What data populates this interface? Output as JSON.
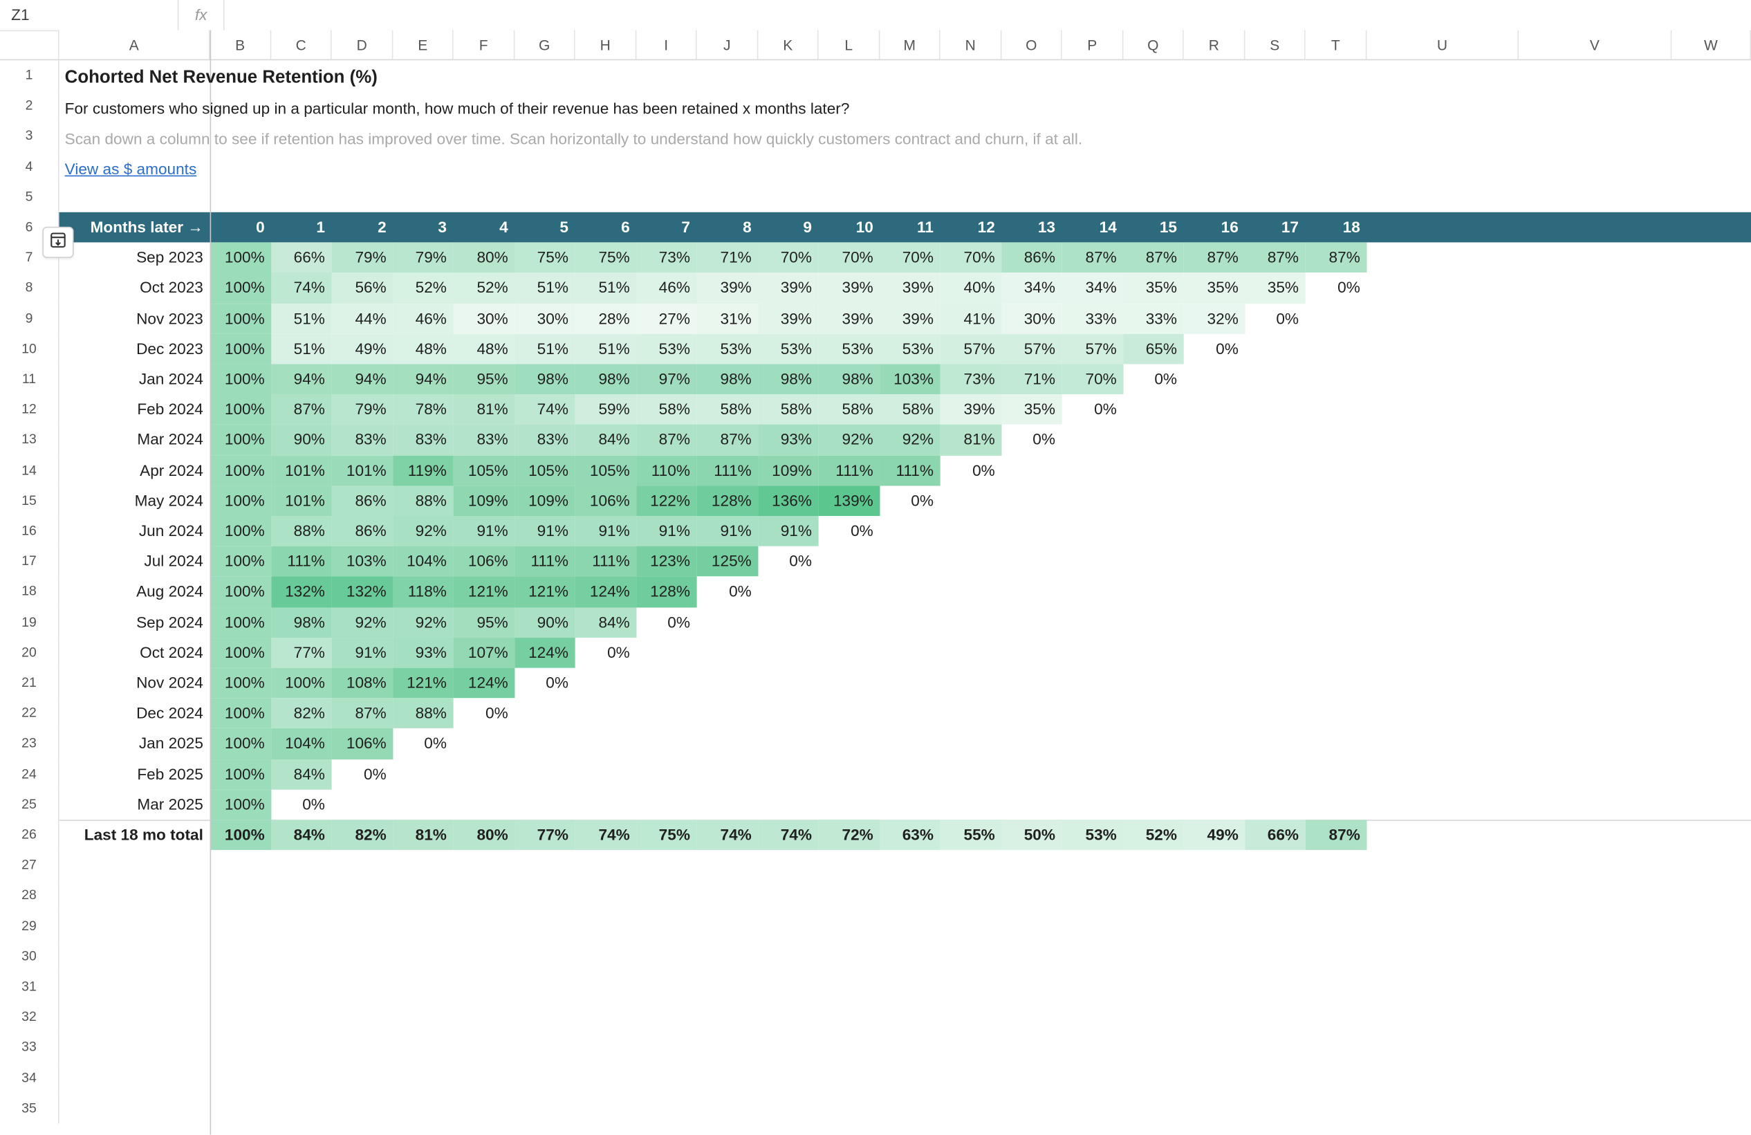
{
  "formula_bar": {
    "cell_ref": "Z1",
    "fx_label": "fx",
    "formula": ""
  },
  "columns": [
    "A",
    "B",
    "C",
    "D",
    "E",
    "F",
    "G",
    "H",
    "I",
    "J",
    "K",
    "L",
    "M",
    "N",
    "O",
    "P",
    "Q",
    "R",
    "S",
    "T",
    "U",
    "V",
    "W"
  ],
  "row_numbers": [
    "1",
    "2",
    "3",
    "4",
    "5",
    "6",
    "7",
    "8",
    "9",
    "10",
    "11",
    "12",
    "13",
    "14",
    "15",
    "16",
    "17",
    "18",
    "19",
    "20",
    "21",
    "22",
    "23",
    "24",
    "25",
    "26",
    "27",
    "28",
    "29",
    "30",
    "31",
    "32",
    "33",
    "34",
    "35"
  ],
  "sheet": {
    "title": "Cohorted Net Revenue Retention (%)",
    "subtitle": "For customers who signed up in a particular month, how much of their revenue has been retained x months later?",
    "hint": "Scan down a column to see if retention has improved over time. Scan horizontally to understand how quickly customers contract and churn, if at all.",
    "link": "View as $ amounts",
    "header_label": "Months later →",
    "month_offsets": [
      "0",
      "1",
      "2",
      "3",
      "4",
      "5",
      "6",
      "7",
      "8",
      "9",
      "10",
      "11",
      "12",
      "13",
      "14",
      "15",
      "16",
      "17",
      "18"
    ],
    "cohorts": [
      {
        "label": "Sep 2023",
        "values": [
          "100%",
          "66%",
          "79%",
          "79%",
          "80%",
          "75%",
          "75%",
          "73%",
          "71%",
          "70%",
          "70%",
          "70%",
          "70%",
          "86%",
          "87%",
          "87%",
          "87%",
          "87%",
          "87%"
        ]
      },
      {
        "label": "Oct 2023",
        "values": [
          "100%",
          "74%",
          "56%",
          "52%",
          "52%",
          "51%",
          "51%",
          "46%",
          "39%",
          "39%",
          "39%",
          "39%",
          "40%",
          "34%",
          "34%",
          "35%",
          "35%",
          "35%",
          "0%"
        ]
      },
      {
        "label": "Nov 2023",
        "values": [
          "100%",
          "51%",
          "44%",
          "46%",
          "30%",
          "30%",
          "28%",
          "27%",
          "31%",
          "39%",
          "39%",
          "39%",
          "41%",
          "30%",
          "33%",
          "33%",
          "32%",
          "0%"
        ]
      },
      {
        "label": "Dec 2023",
        "values": [
          "100%",
          "51%",
          "49%",
          "48%",
          "48%",
          "51%",
          "51%",
          "53%",
          "53%",
          "53%",
          "53%",
          "53%",
          "57%",
          "57%",
          "57%",
          "65%",
          "0%"
        ]
      },
      {
        "label": "Jan 2024",
        "values": [
          "100%",
          "94%",
          "94%",
          "94%",
          "95%",
          "98%",
          "98%",
          "97%",
          "98%",
          "98%",
          "98%",
          "103%",
          "73%",
          "71%",
          "70%",
          "0%"
        ]
      },
      {
        "label": "Feb 2024",
        "values": [
          "100%",
          "87%",
          "79%",
          "78%",
          "81%",
          "74%",
          "59%",
          "58%",
          "58%",
          "58%",
          "58%",
          "58%",
          "39%",
          "35%",
          "0%"
        ]
      },
      {
        "label": "Mar 2024",
        "values": [
          "100%",
          "90%",
          "83%",
          "83%",
          "83%",
          "83%",
          "84%",
          "87%",
          "87%",
          "93%",
          "92%",
          "92%",
          "81%",
          "0%"
        ]
      },
      {
        "label": "Apr 2024",
        "values": [
          "100%",
          "101%",
          "101%",
          "119%",
          "105%",
          "105%",
          "105%",
          "110%",
          "111%",
          "109%",
          "111%",
          "111%",
          "0%"
        ]
      },
      {
        "label": "May 2024",
        "values": [
          "100%",
          "101%",
          "86%",
          "88%",
          "109%",
          "109%",
          "106%",
          "122%",
          "128%",
          "136%",
          "139%",
          "0%"
        ]
      },
      {
        "label": "Jun 2024",
        "values": [
          "100%",
          "88%",
          "86%",
          "92%",
          "91%",
          "91%",
          "91%",
          "91%",
          "91%",
          "91%",
          "0%"
        ]
      },
      {
        "label": "Jul 2024",
        "values": [
          "100%",
          "111%",
          "103%",
          "104%",
          "106%",
          "111%",
          "111%",
          "123%",
          "125%",
          "0%"
        ]
      },
      {
        "label": "Aug 2024",
        "values": [
          "100%",
          "132%",
          "132%",
          "118%",
          "121%",
          "121%",
          "124%",
          "128%",
          "0%"
        ]
      },
      {
        "label": "Sep 2024",
        "values": [
          "100%",
          "98%",
          "92%",
          "92%",
          "95%",
          "90%",
          "84%",
          "0%"
        ]
      },
      {
        "label": "Oct 2024",
        "values": [
          "100%",
          "77%",
          "91%",
          "93%",
          "107%",
          "124%",
          "0%"
        ]
      },
      {
        "label": "Nov 2024",
        "values": [
          "100%",
          "100%",
          "108%",
          "121%",
          "124%",
          "0%"
        ]
      },
      {
        "label": "Dec 2024",
        "values": [
          "100%",
          "82%",
          "87%",
          "88%",
          "0%"
        ]
      },
      {
        "label": "Jan 2025",
        "values": [
          "100%",
          "104%",
          "106%",
          "0%"
        ]
      },
      {
        "label": "Feb 2025",
        "values": [
          "100%",
          "84%",
          "0%"
        ]
      },
      {
        "label": "Mar 2025",
        "values": [
          "100%",
          "0%"
        ]
      }
    ],
    "total": {
      "label": "Last 18 mo total",
      "values": [
        "100%",
        "84%",
        "82%",
        "81%",
        "80%",
        "77%",
        "74%",
        "75%",
        "74%",
        "74%",
        "72%",
        "63%",
        "55%",
        "50%",
        "53%",
        "52%",
        "49%",
        "66%",
        "87%"
      ]
    }
  },
  "colors": {
    "header_band": "#2d6a7e",
    "link": "#2a6ec9",
    "heat_low": "#f7fcf9",
    "heat_high": "#5ac58e"
  }
}
